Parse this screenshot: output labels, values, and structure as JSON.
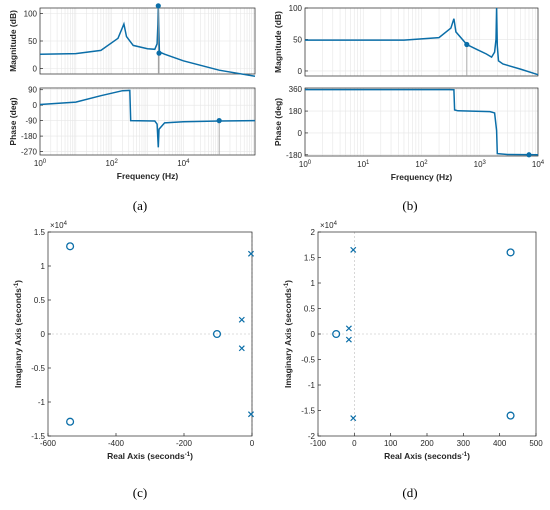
{
  "captions": [
    "(a)",
    "(b)",
    "(c)",
    "(d)"
  ],
  "chart_data": [
    {
      "id": "a",
      "type": "line",
      "subtype": "bode",
      "xlabel": "Frequency  (Hz)",
      "xscale": "log",
      "xlim": [
        1,
        1000000
      ],
      "xtick_labels": [
        {
          "v": 1,
          "t": "10",
          "e": "0"
        },
        {
          "v": 100,
          "t": "10",
          "e": "2"
        },
        {
          "v": 10000,
          "t": "10",
          "e": "4"
        }
      ],
      "magnitude": {
        "ylabel": "Magnitude (dB)",
        "ylim": [
          -10,
          110
        ],
        "yticks": [
          0,
          50,
          100
        ],
        "points": [
          [
            1,
            26
          ],
          [
            10,
            27
          ],
          [
            50,
            33
          ],
          [
            150,
            55
          ],
          [
            220,
            81
          ],
          [
            260,
            58
          ],
          [
            400,
            42
          ],
          [
            1000,
            36
          ],
          [
            1600,
            35
          ],
          [
            1850,
            45
          ],
          [
            1950,
            80
          ],
          [
            2000,
            114
          ],
          [
            2050,
            80
          ],
          [
            2150,
            30
          ],
          [
            3000,
            26
          ],
          [
            10000,
            14
          ],
          [
            100000,
            -3
          ],
          [
            1000000,
            -14
          ]
        ],
        "markers": [
          [
            2000,
            114
          ],
          [
            2100,
            28
          ]
        ]
      },
      "phase": {
        "ylabel": "Phase (deg)",
        "ylim": [
          -290,
          100
        ],
        "yticks": [
          -270,
          -180,
          -90,
          0,
          90
        ],
        "points": [
          [
            1,
            4
          ],
          [
            10,
            18
          ],
          [
            50,
            55
          ],
          [
            200,
            84
          ],
          [
            320,
            86
          ],
          [
            340,
            -90
          ],
          [
            1600,
            -92
          ],
          [
            1850,
            -110
          ],
          [
            2000,
            -245
          ],
          [
            2100,
            -140
          ],
          [
            3000,
            -103
          ],
          [
            10000,
            -97
          ],
          [
            100000,
            -92
          ],
          [
            1000000,
            -90
          ]
        ],
        "markers": [
          [
            100000,
            -90
          ]
        ]
      }
    },
    {
      "id": "b",
      "type": "line",
      "subtype": "bode",
      "xlabel": "Frequency  (Hz)",
      "xscale": "log",
      "xlim": [
        1,
        10000
      ],
      "xtick_labels": [
        {
          "v": 1,
          "t": "10",
          "e": "0"
        },
        {
          "v": 10,
          "t": "10",
          "e": "1"
        },
        {
          "v": 100,
          "t": "10",
          "e": "2"
        },
        {
          "v": 1000,
          "t": "10",
          "e": "3"
        },
        {
          "v": 10000,
          "t": "10",
          "e": "4"
        }
      ],
      "magnitude": {
        "ylabel": "Magnitude (dB)",
        "ylim": [
          -8,
          100
        ],
        "yticks": [
          0,
          50,
          100
        ],
        "points": [
          [
            1,
            49
          ],
          [
            50,
            49
          ],
          [
            200,
            53
          ],
          [
            320,
            68
          ],
          [
            360,
            83
          ],
          [
            390,
            62
          ],
          [
            600,
            42
          ],
          [
            900,
            34
          ],
          [
            1300,
            27
          ],
          [
            1600,
            22
          ],
          [
            1800,
            30
          ],
          [
            1900,
            50
          ],
          [
            1950,
            100
          ],
          [
            2000,
            40
          ],
          [
            2100,
            16
          ],
          [
            2500,
            11
          ],
          [
            5000,
            3
          ],
          [
            10000,
            -6
          ]
        ],
        "markers": [
          [
            600,
            42
          ]
        ]
      },
      "phase": {
        "ylabel": "Phase (deg)",
        "ylim": [
          -190,
          370
        ],
        "yticks": [
          -180,
          0,
          180,
          360
        ],
        "points": [
          [
            1,
            357
          ],
          [
            300,
            357
          ],
          [
            360,
            356
          ],
          [
            370,
            190
          ],
          [
            420,
            182
          ],
          [
            1500,
            176
          ],
          [
            1800,
            165
          ],
          [
            1950,
            20
          ],
          [
            2000,
            -170
          ],
          [
            3000,
            -178
          ],
          [
            10000,
            -180
          ]
        ],
        "markers": [
          [
            7000,
            -180
          ]
        ]
      }
    },
    {
      "id": "c",
      "type": "scatter",
      "subtype": "pole-zero map",
      "xlabel": "Real Axis (seconds",
      "xlabel_sup": "-1",
      "ylabel": "Imaginary Axis (seconds",
      "ylabel_sup": "-1",
      "xlim": [
        -600,
        0
      ],
      "ylim": [
        -15000,
        15000
      ],
      "xticks": [
        -600,
        -400,
        -200,
        0
      ],
      "yticks": [
        -15000,
        -10000,
        -5000,
        0,
        5000,
        10000,
        15000
      ],
      "ytick_labels": [
        "-1.5",
        "-1",
        "-0.5",
        "0",
        "0.5",
        "1",
        "1.5"
      ],
      "y_multiplier": "×10",
      "y_multiplier_exp": "4",
      "zeros": [
        [
          -535,
          12900
        ],
        [
          -535,
          -12900
        ],
        [
          -103,
          0
        ]
      ],
      "poles": [
        [
          -3,
          11800
        ],
        [
          -3,
          -11800
        ],
        [
          -30,
          2100
        ],
        [
          -30,
          -2100
        ]
      ]
    },
    {
      "id": "d",
      "type": "scatter",
      "subtype": "pole-zero map",
      "xlabel": "Real Axis (seconds",
      "xlabel_sup": "-1",
      "ylabel": "Imaginary Axis (seconds",
      "ylabel_sup": "-1",
      "xlim": [
        -100,
        500
      ],
      "ylim": [
        -20000,
        20000
      ],
      "xticks": [
        -100,
        0,
        100,
        200,
        300,
        400,
        500
      ],
      "yticks": [
        -20000,
        -15000,
        -10000,
        -5000,
        0,
        5000,
        10000,
        15000,
        20000
      ],
      "ytick_labels": [
        "-2",
        "-1.5",
        "-1",
        "-0.5",
        "0",
        "0.5",
        "1",
        "1.5",
        "2"
      ],
      "y_multiplier": "×10",
      "y_multiplier_exp": "4",
      "zeros": [
        [
          -50,
          0
        ],
        [
          430,
          16000
        ],
        [
          430,
          -16000
        ]
      ],
      "poles": [
        [
          -15,
          1100
        ],
        [
          -15,
          -1100
        ],
        [
          -3,
          16500
        ],
        [
          -3,
          -16500
        ]
      ]
    }
  ]
}
